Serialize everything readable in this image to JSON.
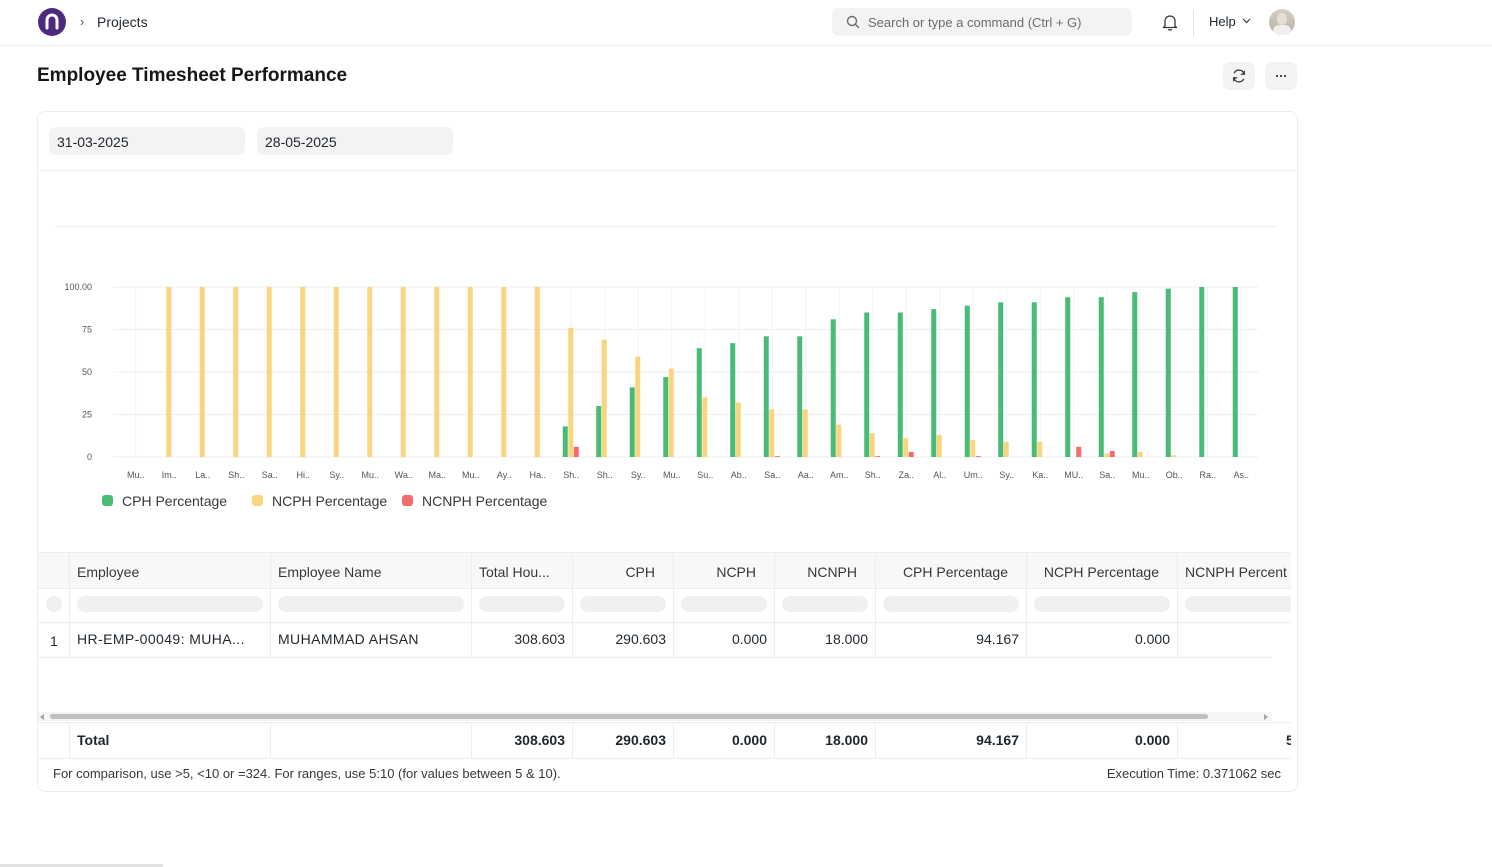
{
  "navbar": {
    "breadcrumb_separator": "›",
    "breadcrumb": "Projects",
    "search_placeholder": "Search or type a command (Ctrl + G)",
    "help_label": "Help"
  },
  "page": {
    "title": "Employee Timesheet Performance"
  },
  "filters": {
    "from_date": "31-03-2025",
    "to_date": "28-05-2025"
  },
  "colors": {
    "cph": "#48bb74",
    "ncph": "#f8d57e",
    "ncnph": "#f56b6b",
    "brand": "#4e2a7f"
  },
  "chart_data": {
    "type": "bar",
    "ylim": [
      0,
      100
    ],
    "y_ticks": [
      "100.00",
      "75",
      "50",
      "25",
      "0"
    ],
    "y_tick_values": [
      100,
      75,
      50,
      25,
      0
    ],
    "categories": [
      "Mu..",
      "Im..",
      "La..",
      "Sh..",
      "Sa..",
      "Hi..",
      "Sy..",
      "Mu..",
      "Wa..",
      "Ma..",
      "Mu..",
      "Ay..",
      "Ha..",
      "Sh..",
      "Sh..",
      "Sy..",
      "Mu..",
      "Su..",
      "Ab..",
      "Sa..",
      "Aa..",
      "Am..",
      "Sh..",
      "Za..",
      "Al..",
      "Um..",
      "Sy..",
      "Ka..",
      "MU..",
      "Sa..",
      "Mu..",
      "Ob..",
      "Ra..",
      "As.."
    ],
    "series": [
      {
        "name": "CPH Percentage",
        "values": [
          0,
          0,
          0,
          0,
          0,
          0,
          0,
          0,
          0,
          0,
          0,
          0,
          0,
          18,
          30,
          41,
          47,
          64,
          67,
          71,
          71,
          81,
          85,
          85,
          87,
          89,
          91,
          91,
          94,
          94,
          97,
          99,
          100,
          100
        ]
      },
      {
        "name": "NCPH Percentage",
        "values": [
          0,
          100,
          100,
          100,
          100,
          100,
          100,
          100,
          100,
          100,
          100,
          100,
          100,
          76,
          69,
          59,
          52,
          35,
          32,
          28,
          28,
          19,
          14,
          11,
          13,
          10,
          9,
          9,
          0,
          2,
          3,
          1,
          0,
          0
        ]
      },
      {
        "name": "NCNPH Percentage",
        "values": [
          0,
          0,
          0,
          0,
          0,
          0,
          0,
          0,
          0,
          0,
          0,
          0,
          0,
          6,
          0,
          0,
          0,
          0,
          0,
          0.5,
          0,
          0,
          0.5,
          3,
          0,
          0.5,
          0,
          0,
          6,
          3.5,
          0,
          0,
          0,
          0
        ]
      }
    ]
  },
  "table": {
    "columns": [
      "Employee",
      "Employee Name",
      "Total Hou...",
      "CPH",
      "NCPH",
      "NCNPH",
      "CPH Percentage",
      "NCPH Percentage",
      "NCNPH Percent"
    ],
    "rows": [
      {
        "index": "1",
        "employee": "HR-EMP-00049: MUHA...",
        "employee_name": "MUHAMMAD AHSAN",
        "total_hours": "308.603",
        "cph": "290.603",
        "ncph": "0.000",
        "ncnph": "18.000",
        "cph_pct": "94.167",
        "ncph_pct": "0.000",
        "ncnph_pct": ""
      }
    ],
    "totals": {
      "label": "Total",
      "total_hours": "308.603",
      "cph": "290.603",
      "ncph": "0.000",
      "ncnph": "18.000",
      "cph_pct": "94.167",
      "ncph_pct": "0.000",
      "ncnph_pct": "5"
    }
  },
  "footer": {
    "hint": "For comparison, use >5, <10 or =324. For ranges, use 5:10 (for values between 5 & 10).",
    "execution_time": "Execution Time: 0.371062 sec"
  }
}
